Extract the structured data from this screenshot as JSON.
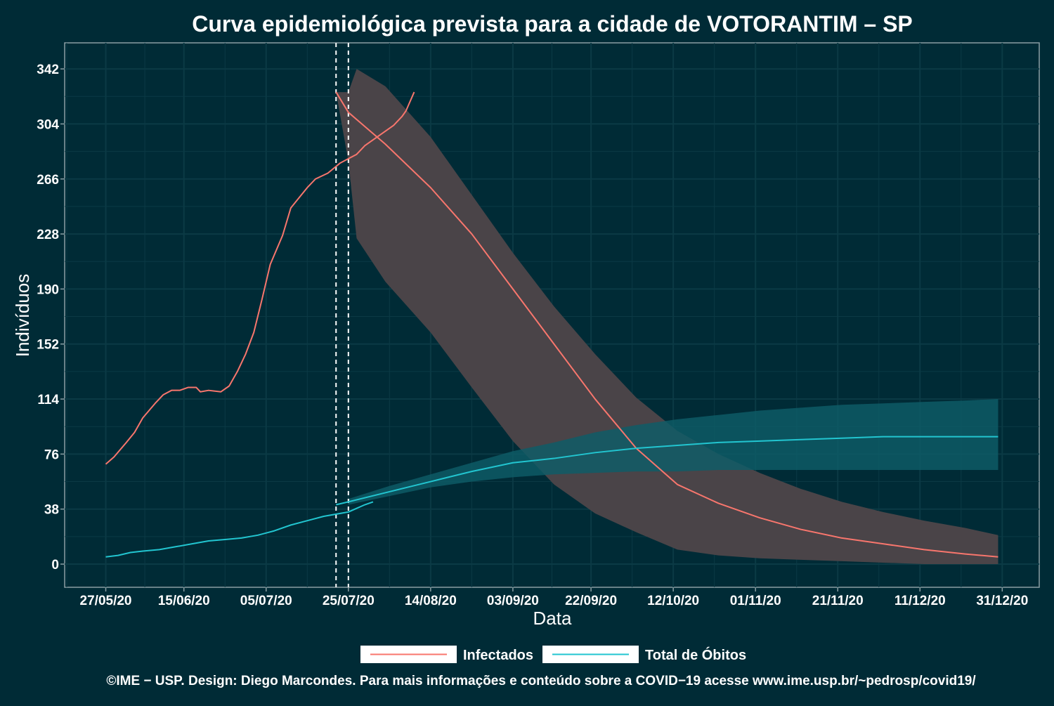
{
  "chart_data": {
    "type": "line",
    "title": "Curva epidemiológica prevista para a cidade de VOTORANTIM – SP",
    "xlabel": "Data",
    "ylabel": "Indivíduos",
    "x_ticks": [
      "27/05/20",
      "15/06/20",
      "05/07/20",
      "25/07/20",
      "14/08/20",
      "03/09/20",
      "22/09/20",
      "12/10/20",
      "01/11/20",
      "21/11/20",
      "11/12/20",
      "31/12/20"
    ],
    "x_range": [
      "2020-05-17",
      "2021-01-09"
    ],
    "y_ticks": [
      0,
      38,
      76,
      114,
      152,
      190,
      228,
      266,
      304,
      342
    ],
    "ylim": [
      -16,
      360
    ],
    "grid": true,
    "legend_position": "bottom",
    "vertical_lines": [
      "2020-07-22",
      "2020-07-25"
    ],
    "series": [
      {
        "name": "Infectados",
        "color": "#f8766d",
        "observed": [
          [
            "2020-05-27",
            69
          ],
          [
            "2020-05-29",
            74
          ],
          [
            "2020-06-01",
            84
          ],
          [
            "2020-06-03",
            91
          ],
          [
            "2020-06-05",
            101
          ],
          [
            "2020-06-08",
            111
          ],
          [
            "2020-06-10",
            117
          ],
          [
            "2020-06-12",
            120
          ],
          [
            "2020-06-14",
            120
          ],
          [
            "2020-06-16",
            122
          ],
          [
            "2020-06-18",
            122
          ],
          [
            "2020-06-19",
            119
          ],
          [
            "2020-06-21",
            120
          ],
          [
            "2020-06-24",
            119
          ],
          [
            "2020-06-26",
            123
          ],
          [
            "2020-06-28",
            133
          ],
          [
            "2020-06-30",
            145
          ],
          [
            "2020-07-02",
            160
          ],
          [
            "2020-07-04",
            183
          ],
          [
            "2020-07-06",
            207
          ],
          [
            "2020-07-09",
            227
          ],
          [
            "2020-07-11",
            246
          ],
          [
            "2020-07-13",
            253
          ],
          [
            "2020-07-15",
            260
          ],
          [
            "2020-07-17",
            266
          ],
          [
            "2020-07-20",
            270
          ],
          [
            "2020-07-23",
            277
          ],
          [
            "2020-07-25",
            280
          ],
          [
            "2020-07-27",
            283
          ],
          [
            "2020-07-29",
            289
          ],
          [
            "2020-07-31",
            293
          ],
          [
            "2020-08-02",
            297
          ],
          [
            "2020-08-03",
            299
          ],
          [
            "2020-08-05",
            303
          ],
          [
            "2020-08-07",
            309
          ],
          [
            "2020-08-08",
            313
          ],
          [
            "2020-08-10",
            326
          ]
        ],
        "predicted": [
          [
            "2020-07-22",
            326
          ],
          [
            "2020-07-25",
            312
          ],
          [
            "2020-08-03",
            290
          ],
          [
            "2020-08-14",
            260
          ],
          [
            "2020-08-24",
            228
          ],
          [
            "2020-09-03",
            190
          ],
          [
            "2020-09-13",
            152
          ],
          [
            "2020-09-23",
            114
          ],
          [
            "2020-10-03",
            80
          ],
          [
            "2020-10-13",
            55
          ],
          [
            "2020-10-23",
            42
          ],
          [
            "2020-11-02",
            32
          ],
          [
            "2020-11-12",
            24
          ],
          [
            "2020-11-22",
            18
          ],
          [
            "2020-12-02",
            14
          ],
          [
            "2020-12-12",
            10
          ],
          [
            "2020-12-22",
            7
          ],
          [
            "2020-12-30",
            5
          ]
        ],
        "band": [
          [
            "2020-07-22",
            326,
            326
          ],
          [
            "2020-07-25",
            326,
            278
          ],
          [
            "2020-07-27",
            342,
            225
          ],
          [
            "2020-08-03",
            330,
            195
          ],
          [
            "2020-08-14",
            295,
            160
          ],
          [
            "2020-08-24",
            255,
            122
          ],
          [
            "2020-09-03",
            215,
            85
          ],
          [
            "2020-09-13",
            178,
            55
          ],
          [
            "2020-09-23",
            145,
            35
          ],
          [
            "2020-10-03",
            115,
            22
          ],
          [
            "2020-10-13",
            92,
            10
          ],
          [
            "2020-10-23",
            76,
            6
          ],
          [
            "2020-11-02",
            63,
            4
          ],
          [
            "2020-11-12",
            52,
            3
          ],
          [
            "2020-11-22",
            43,
            2
          ],
          [
            "2020-12-02",
            36,
            1
          ],
          [
            "2020-12-12",
            30,
            0
          ],
          [
            "2020-12-22",
            25,
            0
          ],
          [
            "2020-12-30",
            20,
            0
          ]
        ]
      },
      {
        "name": "Total de Óbitos",
        "color": "#22c5d0",
        "observed": [
          [
            "2020-05-27",
            5
          ],
          [
            "2020-05-30",
            6
          ],
          [
            "2020-06-02",
            8
          ],
          [
            "2020-06-05",
            9
          ],
          [
            "2020-06-09",
            10
          ],
          [
            "2020-06-13",
            12
          ],
          [
            "2020-06-17",
            14
          ],
          [
            "2020-06-21",
            16
          ],
          [
            "2020-06-25",
            17
          ],
          [
            "2020-06-29",
            18
          ],
          [
            "2020-07-03",
            20
          ],
          [
            "2020-07-07",
            23
          ],
          [
            "2020-07-11",
            27
          ],
          [
            "2020-07-15",
            30
          ],
          [
            "2020-07-19",
            33
          ],
          [
            "2020-07-23",
            35
          ],
          [
            "2020-07-25",
            36
          ],
          [
            "2020-07-29",
            41
          ],
          [
            "2020-07-31",
            43
          ]
        ],
        "predicted": [
          [
            "2020-07-22",
            41
          ],
          [
            "2020-07-25",
            43
          ],
          [
            "2020-08-04",
            50
          ],
          [
            "2020-08-14",
            57
          ],
          [
            "2020-08-24",
            64
          ],
          [
            "2020-09-03",
            70
          ],
          [
            "2020-09-13",
            73
          ],
          [
            "2020-09-23",
            77
          ],
          [
            "2020-10-03",
            80
          ],
          [
            "2020-10-13",
            82
          ],
          [
            "2020-10-23",
            84
          ],
          [
            "2020-11-02",
            85
          ],
          [
            "2020-11-12",
            86
          ],
          [
            "2020-11-22",
            87
          ],
          [
            "2020-12-02",
            88
          ],
          [
            "2020-12-12",
            88
          ],
          [
            "2020-12-22",
            88
          ],
          [
            "2020-12-30",
            88
          ]
        ],
        "band": [
          [
            "2020-07-25",
            45,
            41
          ],
          [
            "2020-08-04",
            54,
            47
          ],
          [
            "2020-08-14",
            62,
            53
          ],
          [
            "2020-08-24",
            70,
            57
          ],
          [
            "2020-09-03",
            78,
            60
          ],
          [
            "2020-09-13",
            84,
            62
          ],
          [
            "2020-09-23",
            91,
            63
          ],
          [
            "2020-10-03",
            96,
            64
          ],
          [
            "2020-10-13",
            100,
            64
          ],
          [
            "2020-10-23",
            103,
            65
          ],
          [
            "2020-11-02",
            106,
            65
          ],
          [
            "2020-11-12",
            108,
            65
          ],
          [
            "2020-11-22",
            110,
            65
          ],
          [
            "2020-12-02",
            111,
            65
          ],
          [
            "2020-12-12",
            112,
            65
          ],
          [
            "2020-12-22",
            113,
            65
          ],
          [
            "2020-12-30",
            114,
            65
          ]
        ]
      }
    ],
    "colors": {
      "background": "#002b36",
      "band_infectados": "#4a4448",
      "band_obitos": "#0e5d68",
      "grid": "#0b3a45",
      "axis": "#8a9ea3"
    }
  },
  "footer": "©IME − USP. Design: Diego Marcondes. Para mais informações e conteúdo sobre a COVID−19 acesse www.ime.usp.br/~pedrosp/covid19/"
}
